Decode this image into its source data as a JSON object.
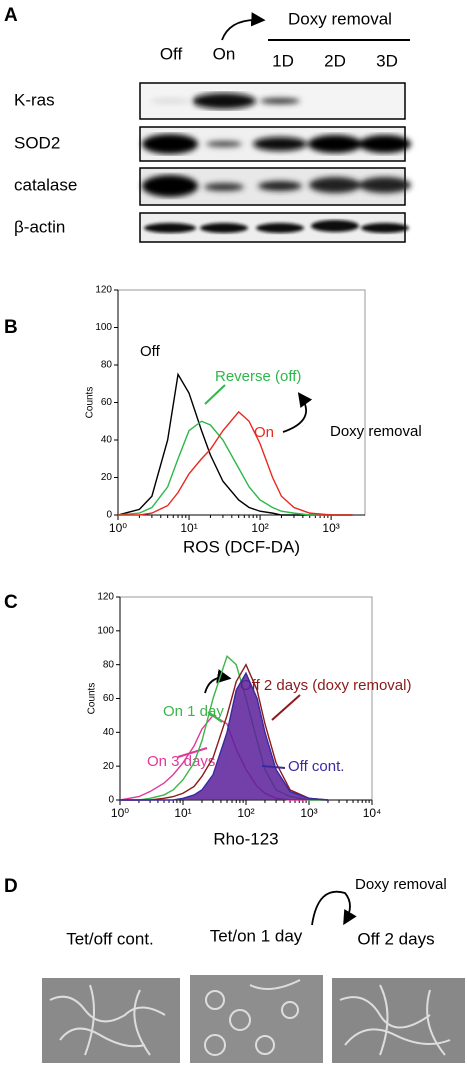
{
  "panel_a": {
    "letter": "A",
    "lanes": [
      "Off",
      "On"
    ],
    "group_header": "Doxy removal",
    "group_lanes": [
      "1D",
      "2D",
      "3D"
    ],
    "rows": [
      "K-ras",
      "SOD2",
      "catalase",
      "β-actin"
    ]
  },
  "chart_data": [
    {
      "type": "line",
      "panel": "B",
      "x_label": "ROS (DCF-DA)",
      "y_label": "Counts",
      "log_x": true,
      "xlim": [
        1,
        3000
      ],
      "ylim": [
        0,
        120
      ],
      "xticks": [
        {
          "value": 1,
          "label": "10⁰"
        },
        {
          "value": 10,
          "label": "10¹"
        },
        {
          "value": 100,
          "label": "10²"
        },
        {
          "value": 1000,
          "label": "10³"
        }
      ],
      "yticks": [
        0,
        20,
        40,
        60,
        80,
        100,
        120
      ],
      "x": [
        1,
        2,
        3,
        5,
        7,
        10,
        15,
        20,
        30,
        50,
        70,
        100,
        150,
        200,
        300,
        500,
        1000,
        2000
      ],
      "series": [
        {
          "name": "Off",
          "color": "#000000",
          "values": [
            0,
            3,
            10,
            40,
            75,
            65,
            45,
            32,
            18,
            8,
            4,
            2,
            1,
            0,
            0,
            0,
            0,
            0
          ]
        },
        {
          "name": "Reverse (off)",
          "color": "#2db84a",
          "values": [
            0,
            1,
            4,
            15,
            30,
            45,
            50,
            48,
            40,
            25,
            15,
            8,
            4,
            2,
            1,
            0,
            0,
            0
          ]
        },
        {
          "name": "On",
          "color": "#e8281e",
          "values": [
            0,
            0,
            1,
            5,
            12,
            22,
            30,
            35,
            45,
            55,
            50,
            38,
            20,
            10,
            4,
            1,
            0,
            0
          ]
        }
      ],
      "annotations": [
        "Doxy removal"
      ]
    },
    {
      "type": "line",
      "panel": "C",
      "x_label": "Rho-123",
      "y_label": "Counts",
      "log_x": true,
      "xlim": [
        1,
        10000
      ],
      "ylim": [
        0,
        120
      ],
      "xticks": [
        {
          "value": 1,
          "label": "10⁰"
        },
        {
          "value": 10,
          "label": "10¹"
        },
        {
          "value": 100,
          "label": "10²"
        },
        {
          "value": 1000,
          "label": "10³"
        },
        {
          "value": 10000,
          "label": "10⁴"
        }
      ],
      "yticks": [
        0,
        20,
        40,
        60,
        80,
        100,
        120
      ],
      "x": [
        1,
        2,
        3,
        5,
        7,
        10,
        15,
        20,
        30,
        50,
        70,
        100,
        150,
        200,
        300,
        500,
        1000,
        2000
      ],
      "series": [
        {
          "name": "On 3 days",
          "color": "#e0389a",
          "values": [
            0,
            2,
            5,
            10,
            15,
            22,
            32,
            42,
            50,
            45,
            30,
            18,
            8,
            4,
            1,
            0,
            0,
            0
          ]
        },
        {
          "name": "On 1 day",
          "color": "#3cb54a",
          "values": [
            0,
            0,
            1,
            3,
            6,
            12,
            22,
            35,
            60,
            85,
            80,
            60,
            35,
            18,
            6,
            2,
            0,
            0
          ]
        },
        {
          "name": "Off 2 days (doxy removal)",
          "color": "#8b1a1a",
          "values": [
            0,
            0,
            0,
            1,
            2,
            4,
            8,
            14,
            25,
            50,
            70,
            80,
            65,
            45,
            22,
            6,
            1,
            0
          ]
        },
        {
          "name": "Off cont.",
          "color": "#3a2aa0",
          "fill": "#5a1f9a",
          "values": [
            0,
            0,
            0,
            0,
            0,
            1,
            3,
            6,
            15,
            40,
            65,
            75,
            60,
            40,
            18,
            5,
            1,
            0
          ]
        }
      ]
    }
  ],
  "panel_d": {
    "letter": "D",
    "arrow_label": "Doxy removal",
    "images": [
      "Tet/off cont.",
      "Tet/on 1 day",
      "Off 2 days"
    ]
  }
}
